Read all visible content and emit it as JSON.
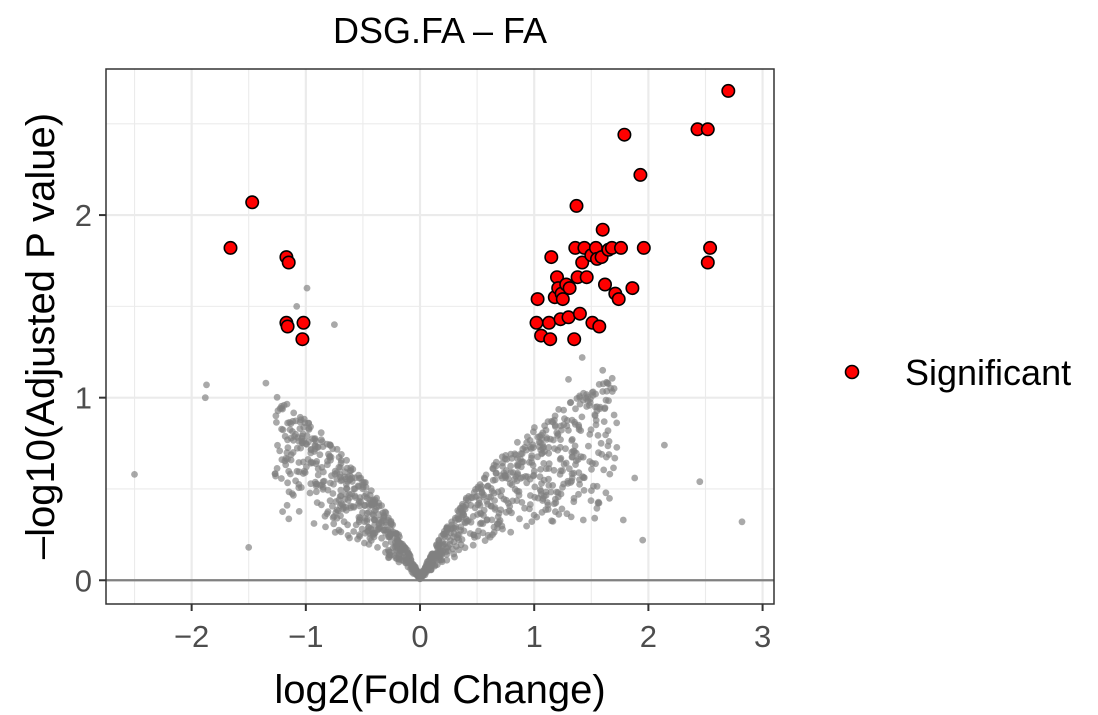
{
  "chart_data": {
    "type": "scatter",
    "title": "DSG.FA – FA",
    "xlabel": "log2(Fold Change)",
    "ylabel": "–log10(Adjusted P value)",
    "xlim": [
      -2.75,
      3.1
    ],
    "ylim": [
      -0.13,
      2.8
    ],
    "x_ticks": [
      -2,
      -1,
      0,
      1,
      2,
      3
    ],
    "x_tick_labels": [
      "−2",
      "−1",
      "0",
      "1",
      "2",
      "3"
    ],
    "y_ticks": [
      0,
      1,
      2
    ],
    "y_tick_labels": [
      "0",
      "1",
      "2"
    ],
    "grid": true,
    "hline": 0,
    "legend_position": "right",
    "colors": {
      "significant_fill": "#ff0000",
      "significant_stroke": "#000000",
      "nonsignificant": "#808080",
      "grid": "#ebebeb",
      "panel_border": "#333333",
      "hline": "#808080"
    },
    "series": [
      {
        "name": "Significant",
        "points": [
          [
            -1.66,
            1.82
          ],
          [
            -1.47,
            2.07
          ],
          [
            -1.17,
            1.77
          ],
          [
            -1.15,
            1.74
          ],
          [
            -1.17,
            1.41
          ],
          [
            -1.16,
            1.39
          ],
          [
            -1.02,
            1.41
          ],
          [
            -1.03,
            1.32
          ],
          [
            1.03,
            1.54
          ],
          [
            1.02,
            1.41
          ],
          [
            1.06,
            1.34
          ],
          [
            1.13,
            1.41
          ],
          [
            1.14,
            1.32
          ],
          [
            1.15,
            1.77
          ],
          [
            1.18,
            1.55
          ],
          [
            1.2,
            1.66
          ],
          [
            1.21,
            1.6
          ],
          [
            1.24,
            1.57
          ],
          [
            1.23,
            1.43
          ],
          [
            1.25,
            1.54
          ],
          [
            1.28,
            1.62
          ],
          [
            1.31,
            1.6
          ],
          [
            1.3,
            1.44
          ],
          [
            1.35,
            1.32
          ],
          [
            1.36,
            1.82
          ],
          [
            1.37,
            2.05
          ],
          [
            1.38,
            1.66
          ],
          [
            1.4,
            1.46
          ],
          [
            1.42,
            1.74
          ],
          [
            1.44,
            1.82
          ],
          [
            1.46,
            1.66
          ],
          [
            1.5,
            1.78
          ],
          [
            1.51,
            1.41
          ],
          [
            1.54,
            1.82
          ],
          [
            1.55,
            1.76
          ],
          [
            1.57,
            1.39
          ],
          [
            1.59,
            1.77
          ],
          [
            1.6,
            1.92
          ],
          [
            1.62,
            1.62
          ],
          [
            1.65,
            1.81
          ],
          [
            1.68,
            1.82
          ],
          [
            1.71,
            1.57
          ],
          [
            1.74,
            1.54
          ],
          [
            1.76,
            1.82
          ],
          [
            1.79,
            2.44
          ],
          [
            1.86,
            1.6
          ],
          [
            1.93,
            2.22
          ],
          [
            1.96,
            1.82
          ],
          [
            2.43,
            2.47
          ],
          [
            2.52,
            2.47
          ],
          [
            2.7,
            2.68
          ],
          [
            2.52,
            1.74
          ],
          [
            2.54,
            1.82
          ]
        ]
      }
    ]
  },
  "legend": {
    "items": [
      {
        "label": "Significant"
      }
    ]
  }
}
